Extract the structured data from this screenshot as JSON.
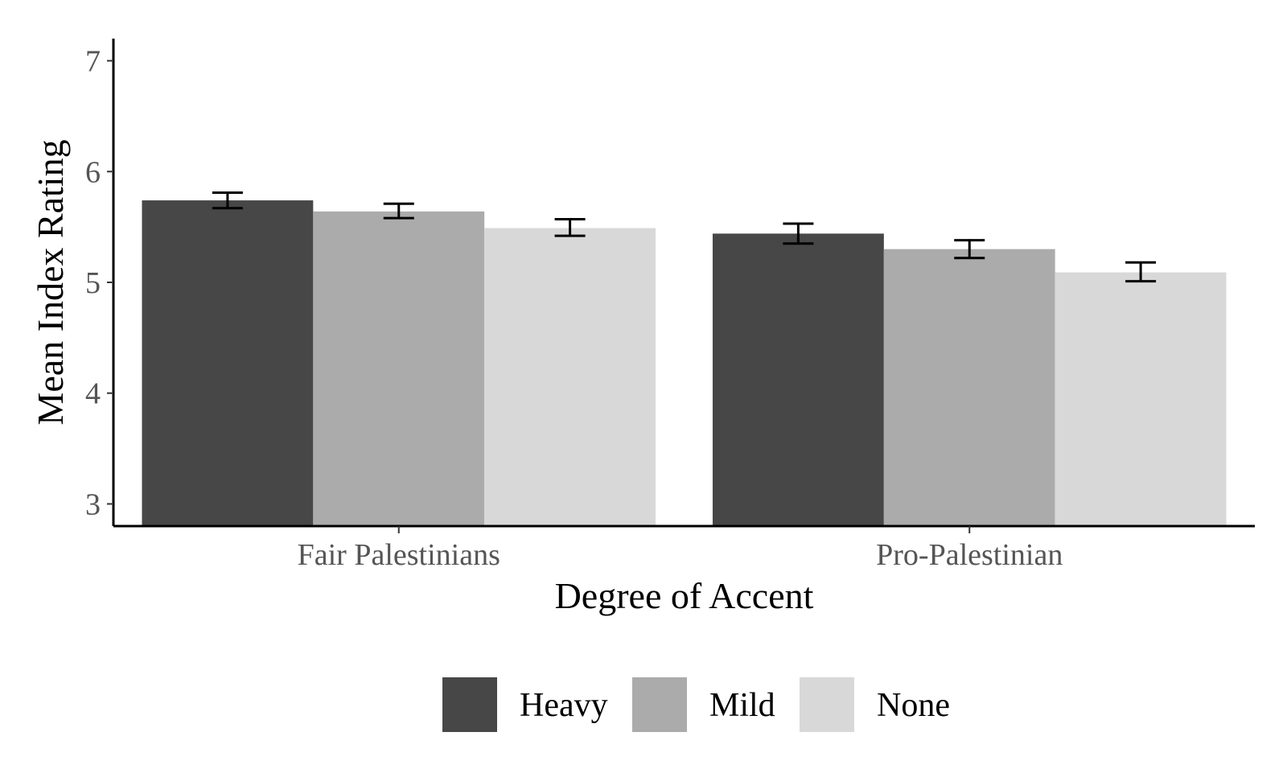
{
  "chart_data": {
    "type": "bar",
    "title": "",
    "xlabel": "Degree of Accent",
    "ylabel": "Mean Index Rating",
    "categories": [
      "Fair Palestinians",
      "Pro-Palestinian"
    ],
    "series": [
      {
        "name": "Heavy",
        "color": "#474747",
        "values": [
          5.74,
          5.44
        ],
        "error_low": [
          5.67,
          5.35
        ],
        "error_high": [
          5.81,
          5.53
        ]
      },
      {
        "name": "Mild",
        "color": "#ababab",
        "values": [
          5.64,
          5.3
        ],
        "error_low": [
          5.58,
          5.22
        ],
        "error_high": [
          5.71,
          5.38
        ]
      },
      {
        "name": "None",
        "color": "#d8d8d8",
        "values": [
          5.49,
          5.09
        ],
        "error_low": [
          5.42,
          5.01
        ],
        "error_high": [
          5.57,
          5.18
        ]
      }
    ],
    "ylim": [
      2.8,
      7.2
    ],
    "yticks": [
      3,
      4,
      5,
      6,
      7
    ],
    "grid": false,
    "legend_position": "bottom"
  }
}
